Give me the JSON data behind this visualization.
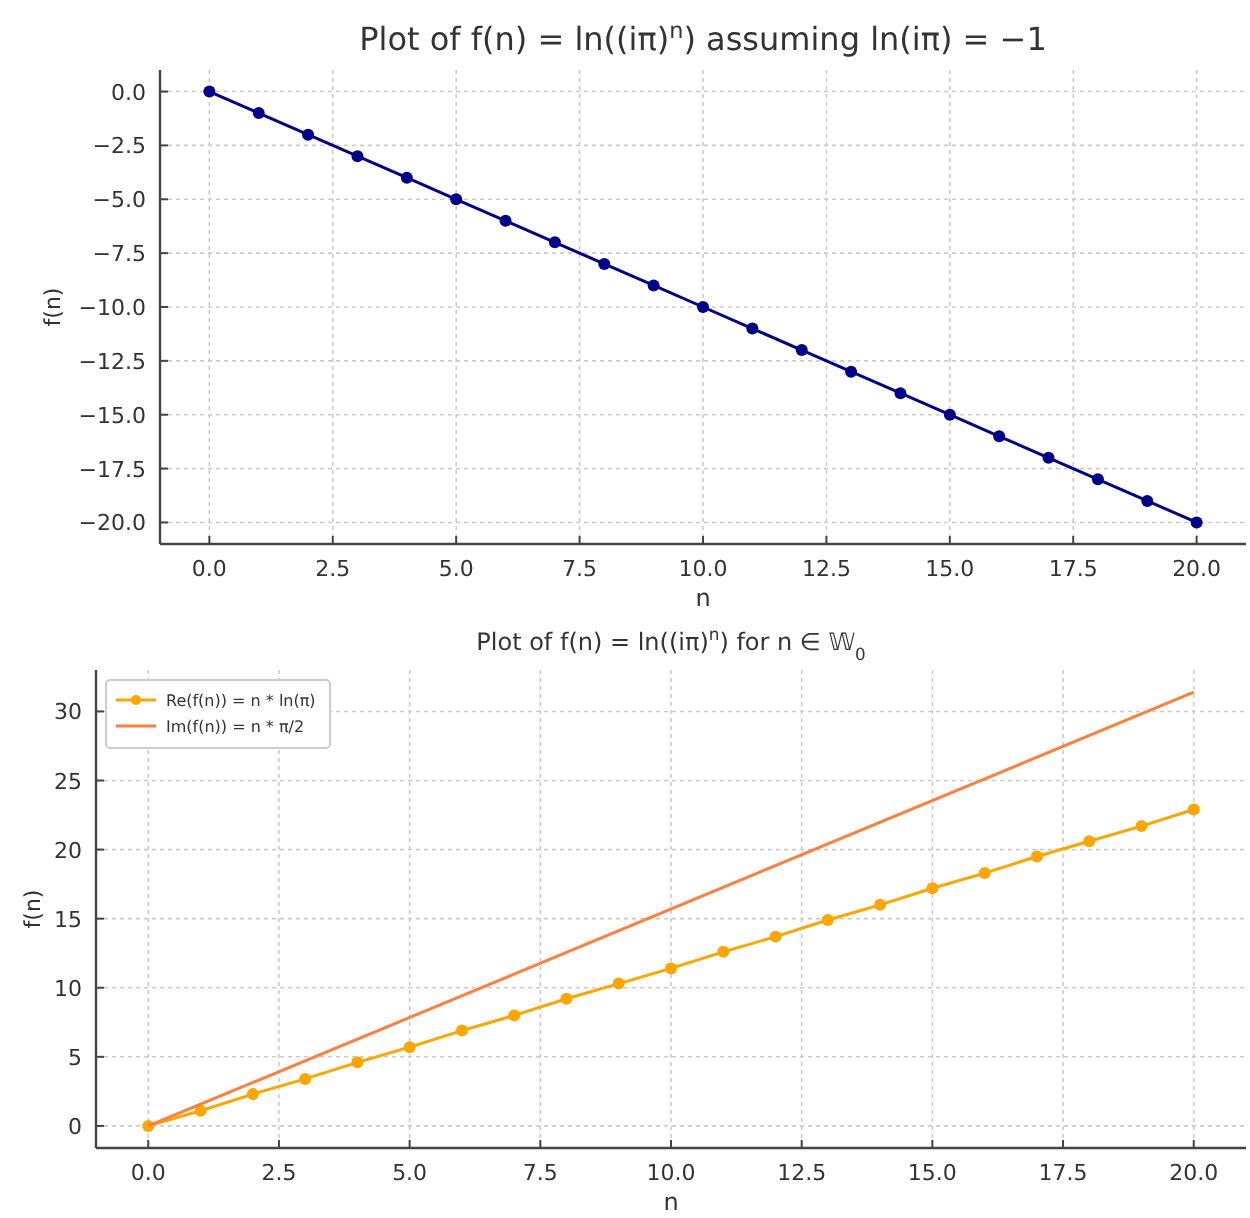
{
  "chart_data": [
    {
      "type": "line",
      "title": "Plot of f(n) = ln((iπ)$^{n}$) assuming ln(iπ) = −1",
      "xlabel": "n",
      "ylabel": "f(n)",
      "x": [
        0,
        1,
        2,
        3,
        4,
        5,
        6,
        7,
        8,
        9,
        10,
        11,
        12,
        13,
        14,
        15,
        16,
        17,
        18,
        19,
        20
      ],
      "series": [
        {
          "color": "#00008b",
          "values": [
            0,
            -1,
            -2,
            -3,
            -4,
            -5,
            -6,
            -7,
            -8,
            -9,
            -10,
            -11,
            -12,
            -13,
            -14,
            -15,
            -16,
            -17,
            -18,
            -19,
            -20
          ]
        }
      ],
      "xlim": [
        -1,
        21
      ],
      "ylim": [
        -21,
        1
      ],
      "xticks": [
        {
          "value": 0,
          "label": "0.0"
        },
        {
          "value": 2.5,
          "label": "2.5"
        },
        {
          "value": 5,
          "label": "5.0"
        },
        {
          "value": 7.5,
          "label": "7.5"
        },
        {
          "value": 10,
          "label": "10.0"
        },
        {
          "value": 12.5,
          "label": "12.5"
        },
        {
          "value": 15,
          "label": "15.0"
        },
        {
          "value": 17.5,
          "label": "17.5"
        },
        {
          "value": 20,
          "label": "20.0"
        }
      ],
      "yticks": [
        {
          "value": 0,
          "label": "0.0"
        },
        {
          "value": -2.5,
          "label": "−2.5"
        },
        {
          "value": -5,
          "label": "−5.0"
        },
        {
          "value": -7.5,
          "label": "−7.5"
        },
        {
          "value": -10,
          "label": "−10.0"
        },
        {
          "value": -12.5,
          "label": "−12.5"
        },
        {
          "value": -15,
          "label": "−15.0"
        },
        {
          "value": -17.5,
          "label": "−17.5"
        },
        {
          "value": -20,
          "label": "−20.0"
        }
      ],
      "grid": true,
      "marker": "circle",
      "line_style": "solid"
    },
    {
      "type": "line",
      "title": "Plot of f(n) = ln((iπ)$^{n}$) for n ∈ 𝕎$_{0}$",
      "xlabel": "n",
      "ylabel": "f(n)",
      "series": [
        {
          "name": "Re(f(n)) = n * ln(π)",
          "color": "#ffa500",
          "marker": "circle",
          "x": [
            0,
            1,
            2,
            3,
            4,
            5,
            6,
            7,
            8,
            9,
            10,
            11,
            12,
            13,
            14,
            15,
            16,
            17,
            18,
            19,
            20
          ],
          "values": [
            0,
            1.1,
            2.3,
            3.4,
            4.6,
            5.7,
            6.9,
            8,
            9.2,
            10.3,
            11.4,
            12.6,
            13.7,
            14.9,
            16,
            17.2,
            18.3,
            19.5,
            20.6,
            21.7,
            22.9
          ]
        },
        {
          "name": "Im(f(n)) = n * π/2",
          "color": "#ff7f3f",
          "marker": "none",
          "x": [
            0,
            20
          ],
          "values": [
            0,
            31.4
          ]
        }
      ],
      "xlim": [
        -1,
        21
      ],
      "ylim": [
        -1.6,
        33
      ],
      "xticks": [
        {
          "value": 0,
          "label": "0.0"
        },
        {
          "value": 2.5,
          "label": "2.5"
        },
        {
          "value": 5,
          "label": "5.0"
        },
        {
          "value": 7.5,
          "label": "7.5"
        },
        {
          "value": 10,
          "label": "10.0"
        },
        {
          "value": 12.5,
          "label": "12.5"
        },
        {
          "value": 15,
          "label": "15.0"
        },
        {
          "value": 17.5,
          "label": "17.5"
        },
        {
          "value": 20,
          "label": "20.0"
        }
      ],
      "yticks": [
        0,
        5,
        10,
        15,
        20,
        25,
        30
      ],
      "grid": true,
      "legend": "top left",
      "line_style": "solid"
    }
  ]
}
